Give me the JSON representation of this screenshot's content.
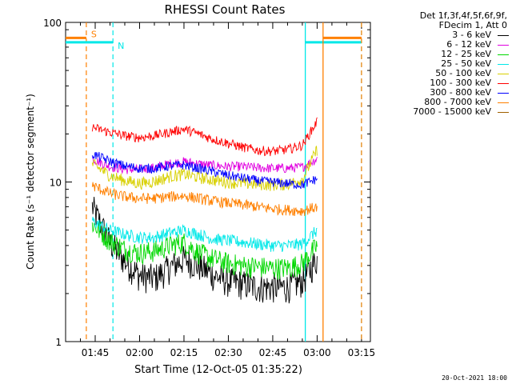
{
  "chart_data": {
    "type": "line",
    "title": "RHESSI Count Rates",
    "xlabel": "Start Time (12-Oct-05 01:35:22)",
    "ylabel": "Count Rate (s⁻¹ detector segment⁻¹)",
    "yscale": "log",
    "ylim": [
      1,
      100
    ],
    "y_ticks": [
      "1",
      "10",
      "100"
    ],
    "xlim": [
      "01:35",
      "03:18"
    ],
    "x_ticks": [
      "01:45",
      "02:00",
      "02:15",
      "02:30",
      "02:45",
      "03:00",
      "03:15"
    ],
    "data_range_x": [
      "01:44",
      "03:00"
    ],
    "legend": {
      "placement": "right",
      "header": [
        "Det 1f,3f,4f,5f,6f,9f,",
        "FDecim 1, Att 0"
      ]
    },
    "x": [
      "01:44",
      "01:50",
      "01:55",
      "02:00",
      "02:05",
      "02:10",
      "02:15",
      "02:20",
      "02:25",
      "02:30",
      "02:35",
      "02:40",
      "02:45",
      "02:50",
      "02:55",
      "03:00"
    ],
    "series": [
      {
        "name": "3 - 6 keV",
        "color": "#000000",
        "values": [
          7,
          4.2,
          3.2,
          2.6,
          2.5,
          2.9,
          3.3,
          3.0,
          2.6,
          2.4,
          2.3,
          2.2,
          2.2,
          2.2,
          2.4,
          3.3
        ]
      },
      {
        "name": "6 - 12 keV",
        "color": "#e000e0",
        "values": [
          14,
          12.5,
          12,
          12,
          12.3,
          13,
          13.4,
          13,
          12.7,
          12.5,
          12.5,
          12.3,
          12.2,
          12.2,
          12.4,
          14
        ]
      },
      {
        "name": "12 - 25 keV",
        "color": "#00d800",
        "values": [
          5.5,
          4.3,
          3.8,
          3.6,
          3.7,
          4.0,
          4.2,
          3.6,
          3.3,
          3.1,
          3.0,
          2.95,
          2.9,
          2.9,
          3.1,
          4.0
        ]
      },
      {
        "name": "25 - 50 keV",
        "color": "#00e8e8",
        "values": [
          5.7,
          5.0,
          4.7,
          4.5,
          4.5,
          4.8,
          5.0,
          4.7,
          4.4,
          4.3,
          4.2,
          4.1,
          4.0,
          4.0,
          4.1,
          5.0
        ]
      },
      {
        "name": "50 - 100 keV",
        "color": "#d8d000",
        "values": [
          13,
          11,
          10.2,
          9.8,
          10.1,
          10.8,
          11.2,
          10.7,
          10.3,
          10.0,
          9.8,
          9.7,
          9.6,
          9.7,
          10.4,
          16
        ]
      },
      {
        "name": "100 - 300 keV",
        "color": "#ff0000",
        "values": [
          22,
          20.5,
          19.5,
          19,
          19.5,
          20.5,
          21.5,
          20,
          18.5,
          17.5,
          16.5,
          15.8,
          15.6,
          16,
          17,
          24
        ]
      },
      {
        "name": "300 - 800 keV",
        "color": "#0000ff",
        "values": [
          15,
          13.5,
          12.6,
          12.2,
          12.2,
          12.6,
          12.8,
          12.2,
          11.6,
          11,
          10.6,
          10.2,
          10,
          9.8,
          9.6,
          10.5
        ]
      },
      {
        "name": "800 - 7000 keV",
        "color": "#ff8000",
        "values": [
          9.5,
          8.5,
          8.1,
          7.9,
          7.9,
          8.1,
          8.2,
          7.9,
          7.6,
          7.4,
          7.2,
          7.0,
          6.8,
          6.7,
          6.6,
          7.0
        ]
      },
      {
        "name": "7000 - 15000 keV",
        "color": "#a06000",
        "values": [
          null,
          null,
          null,
          null,
          null,
          null,
          null,
          null,
          null,
          null,
          null,
          null,
          null,
          null,
          null,
          null
        ]
      }
    ],
    "annotations": [
      {
        "label": "S",
        "color": "#ff8000",
        "bar_from": "01:35",
        "bar_to": "01:42",
        "y": 80,
        "dashed_line_x": "01:42"
      },
      {
        "label": "N",
        "color": "#00e8e8",
        "bar_from": "01:35",
        "bar_to": "01:51",
        "y": 75,
        "dashed_line_x": "01:51"
      },
      {
        "label": "",
        "color": "#00e8e8",
        "solid_line_x": "02:56",
        "bar_from": "02:56",
        "bar_to": "03:15",
        "y": 75,
        "dashed_line_x": "03:15"
      },
      {
        "label": "",
        "color": "#ff8000",
        "solid_line_x": "03:02",
        "bar_from": "03:02",
        "bar_to": "03:15",
        "y": 80,
        "dashed_line_x": "03:15"
      }
    ]
  },
  "footer": {
    "timestamp": "20-Oct-2021 18:00"
  }
}
